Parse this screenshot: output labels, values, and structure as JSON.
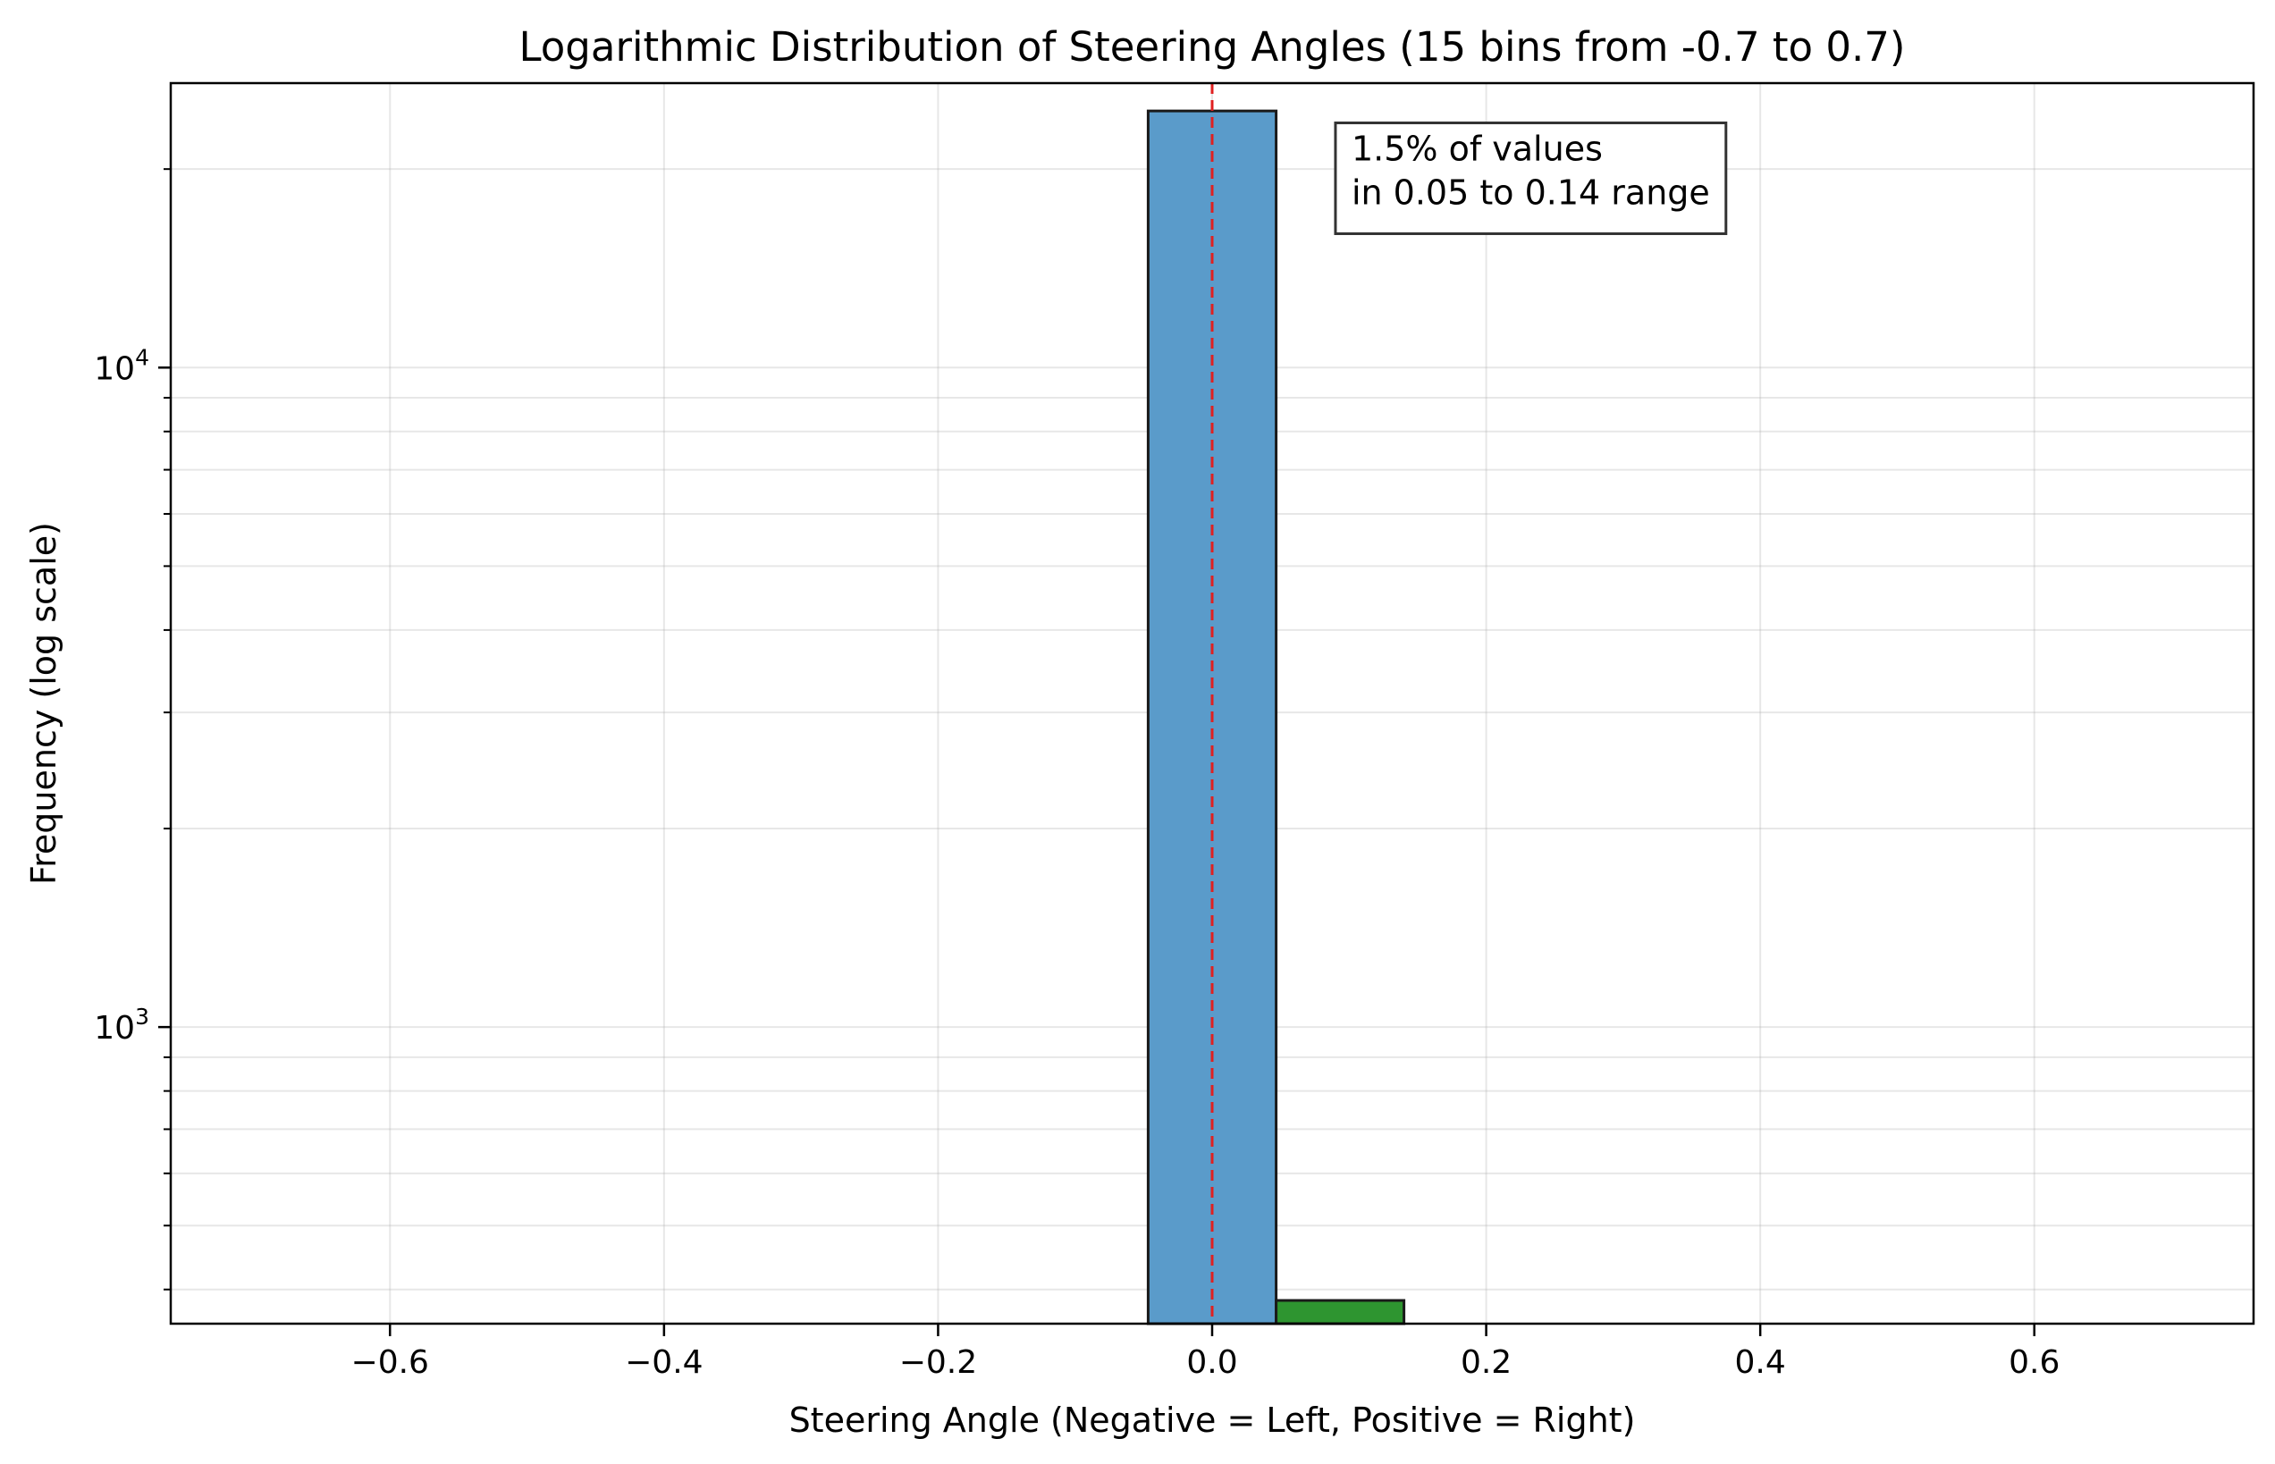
{
  "chart_data": {
    "type": "bar",
    "title": "Logarithmic Distribution of Steering Angles (15 bins from -0.7 to 0.7)",
    "xlabel": "Steering Angle (Negative = Left, Positive = Right)",
    "ylabel": "Frequency (log scale)",
    "x_scale": "linear",
    "y_scale": "log",
    "xlim": [
      -0.76,
      0.76
    ],
    "ylim": [
      355,
      27000
    ],
    "x_ticks": [
      -0.6,
      -0.4,
      -0.2,
      0.0,
      0.2,
      0.4,
      0.6
    ],
    "x_tick_labels": [
      "−0.6",
      "−0.4",
      "−0.2",
      "0.0",
      "0.2",
      "0.4",
      "0.6"
    ],
    "y_ticks": [
      {
        "value": 1000,
        "base": "10",
        "exp": "3"
      },
      {
        "value": 10000,
        "base": "10",
        "exp": "4"
      }
    ],
    "grid": true,
    "bins": [
      {
        "x0": -0.0467,
        "x1": 0.0467,
        "count": 24500,
        "color": "#5a9bca"
      },
      {
        "x0": 0.0467,
        "x1": 0.14,
        "count": 385,
        "color": "#2e9530"
      }
    ],
    "reference_line": {
      "x": 0.0,
      "color": "#e02020",
      "style": "dashed"
    },
    "annotation": {
      "lines": [
        "1.5% of values",
        "in 0.05 to 0.14 range"
      ],
      "x": 0.09,
      "y": 23500
    }
  }
}
